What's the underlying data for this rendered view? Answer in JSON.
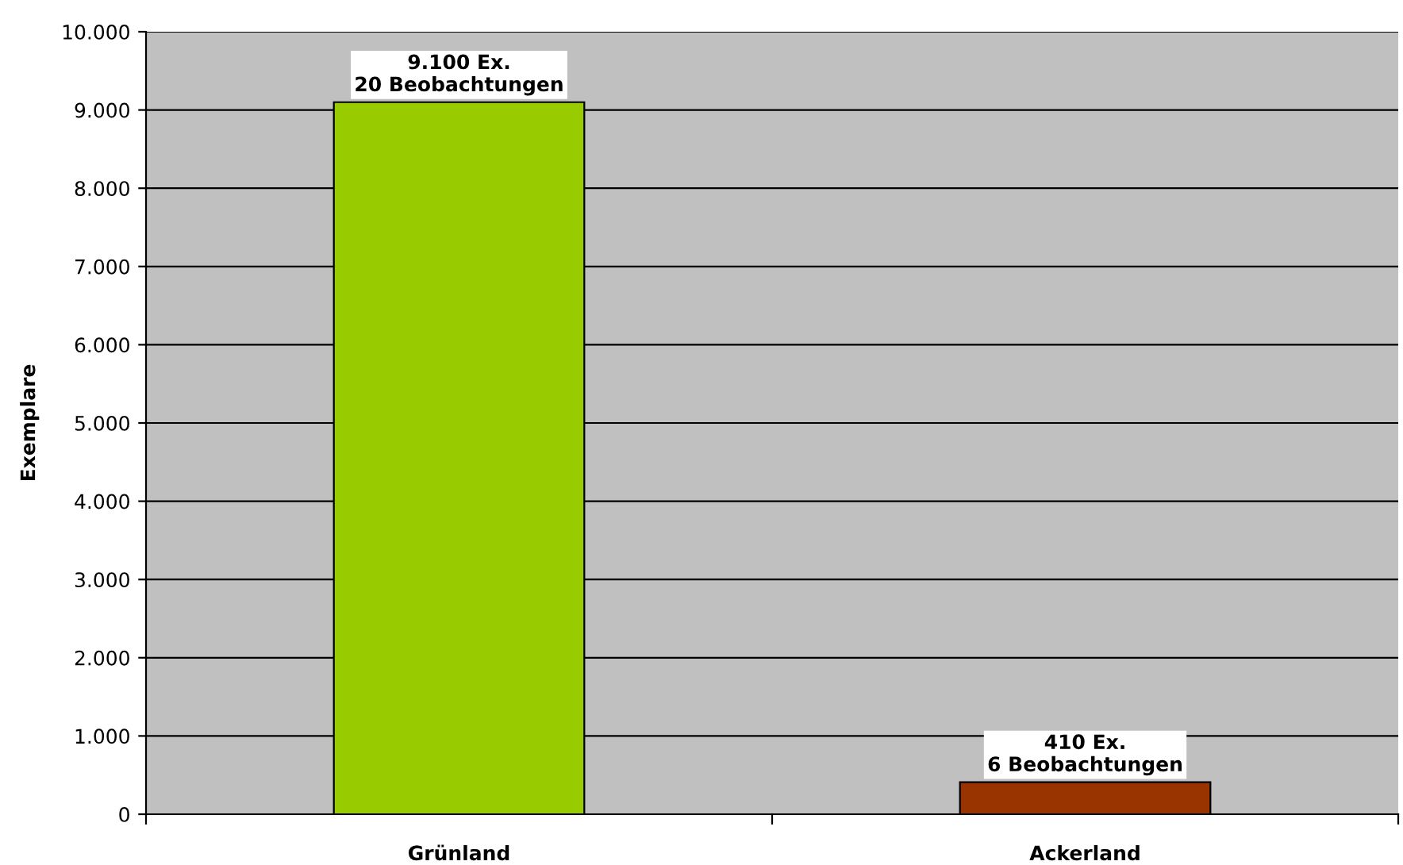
{
  "chart_data": {
    "type": "bar",
    "categories": [
      "Grünland",
      "Ackerland"
    ],
    "series": [
      {
        "colors": [
          "#99cc00",
          "#993300"
        ],
        "values": [
          9100,
          410
        ],
        "value_labels": [
          "9.100 Ex.\n20 Beobachtungen",
          "410 Ex.\n6 Beobachtungen"
        ]
      }
    ],
    "ylabel": "Exemplare",
    "ylim": [
      0,
      10000
    ],
    "yticks": [
      {
        "value": 0,
        "label": "0"
      },
      {
        "value": 1000,
        "label": "1.000"
      },
      {
        "value": 2000,
        "label": "2.000"
      },
      {
        "value": 3000,
        "label": "3.000"
      },
      {
        "value": 4000,
        "label": "4.000"
      },
      {
        "value": 5000,
        "label": "5.000"
      },
      {
        "value": 6000,
        "label": "6.000"
      },
      {
        "value": 7000,
        "label": "7.000"
      },
      {
        "value": 8000,
        "label": "8.000"
      },
      {
        "value": 9000,
        "label": "9.000"
      },
      {
        "value": 10000,
        "label": "10.000"
      }
    ],
    "grid": "y",
    "legend": false
  }
}
